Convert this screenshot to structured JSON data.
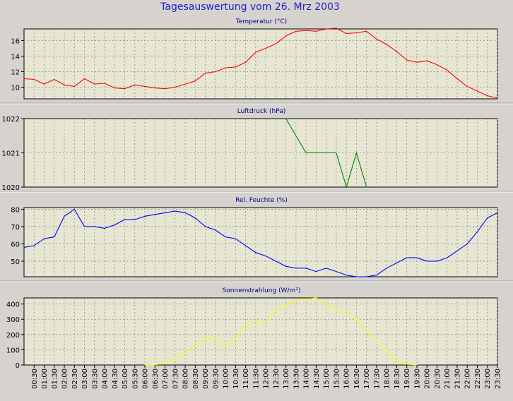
{
  "title": "Tagesauswertung vom 26. Mrz 2003",
  "colors": {
    "background": "#d6d3ce",
    "plot_bg": "#e6e6d2",
    "title": "#2020c8",
    "grid": "#8c8c8c"
  },
  "x_ticks": [
    "00:30",
    "01:00",
    "01:30",
    "02:00",
    "02:30",
    "03:00",
    "03:30",
    "04:00",
    "04:30",
    "05:00",
    "05:30",
    "06:00",
    "06:30",
    "07:00",
    "07:30",
    "08:00",
    "08:30",
    "09:00",
    "09:30",
    "10:00",
    "10:30",
    "11:00",
    "11:30",
    "12:00",
    "12:30",
    "13:00",
    "13:30",
    "14:00",
    "14:30",
    "15:00",
    "15:30",
    "16:00",
    "16:30",
    "17:00",
    "17:30",
    "18:00",
    "18:30",
    "19:00",
    "19:30",
    "20:00",
    "20:30",
    "21:00",
    "21:30",
    "22:00",
    "22:30",
    "23:00",
    "23:30"
  ],
  "chart_data": [
    {
      "type": "line",
      "title": "Temperatur (°C)",
      "ylim": [
        8.5,
        17.5
      ],
      "yticks": [
        10,
        12,
        14,
        16
      ],
      "grid": true,
      "series": [
        {
          "color": "#ff0000",
          "x": [
            "00:00",
            "00:30",
            "01:00",
            "01:30",
            "02:00",
            "02:30",
            "03:00",
            "03:30",
            "04:00",
            "04:30",
            "05:00",
            "05:30",
            "06:00",
            "06:30",
            "07:00",
            "07:30",
            "08:00",
            "08:30",
            "09:00",
            "09:30",
            "10:00",
            "10:30",
            "11:00",
            "11:30",
            "12:00",
            "12:30",
            "13:00",
            "13:30",
            "14:00",
            "14:30",
            "15:00",
            "15:30",
            "16:00",
            "16:30",
            "17:00",
            "17:30",
            "18:00",
            "18:30",
            "19:00",
            "19:30",
            "20:00",
            "20:30",
            "21:00",
            "21:30",
            "22:00",
            "22:30",
            "23:00",
            "23:30"
          ],
          "values": [
            11.1,
            11.0,
            10.4,
            11.0,
            10.3,
            10.1,
            11.1,
            10.4,
            10.5,
            9.9,
            9.8,
            10.3,
            10.1,
            9.9,
            9.8,
            10.0,
            10.4,
            10.8,
            11.8,
            12.0,
            12.5,
            12.6,
            13.2,
            14.5,
            15.0,
            15.6,
            16.6,
            17.2,
            17.3,
            17.2,
            17.5,
            17.6,
            16.9,
            17.0,
            17.2,
            16.2,
            15.5,
            14.6,
            13.5,
            13.2,
            13.4,
            12.9,
            12.2,
            11.1,
            10.1,
            9.5,
            8.9,
            8.6
          ]
        }
      ]
    },
    {
      "type": "line",
      "title": "Luftdruck (hPa)",
      "ylim": [
        1020,
        1022
      ],
      "yticks": [
        1020,
        1021,
        1022
      ],
      "grid": true,
      "series": [
        {
          "color": "#008000",
          "x": [
            "13:00",
            "14:00",
            "14:30",
            "15:00",
            "15:30",
            "16:00",
            "16:30",
            "17:00"
          ],
          "values": [
            1022,
            1021,
            1021,
            1021,
            1021,
            1020,
            1021,
            1020
          ]
        }
      ]
    },
    {
      "type": "line",
      "title": "Rel. Feuchte (%)",
      "ylim": [
        41,
        81
      ],
      "yticks": [
        50,
        60,
        70,
        80
      ],
      "grid": true,
      "series": [
        {
          "color": "#0000ff",
          "x": [
            "00:00",
            "00:30",
            "01:00",
            "01:30",
            "02:00",
            "02:30",
            "03:00",
            "03:30",
            "04:00",
            "04:30",
            "05:00",
            "05:30",
            "06:00",
            "06:30",
            "07:00",
            "07:30",
            "08:00",
            "08:30",
            "09:00",
            "09:30",
            "10:00",
            "10:30",
            "11:00",
            "11:30",
            "12:00",
            "12:30",
            "13:00",
            "13:30",
            "14:00",
            "14:30",
            "15:00",
            "15:30",
            "16:00",
            "16:30",
            "17:00",
            "17:30",
            "18:00",
            "18:30",
            "19:00",
            "19:30",
            "20:00",
            "20:30",
            "21:00",
            "21:30",
            "22:00",
            "22:30",
            "23:00",
            "23:30"
          ],
          "values": [
            58,
            59,
            63,
            64,
            76,
            80,
            70,
            70,
            69,
            71,
            74,
            74,
            76,
            77,
            78,
            79,
            78,
            75,
            70,
            68,
            64,
            63,
            59,
            55,
            53,
            50,
            47,
            46,
            46,
            44,
            46,
            44,
            42,
            41,
            41,
            42,
            46,
            49,
            52,
            52,
            50,
            50,
            52,
            56,
            60,
            67,
            75,
            78
          ]
        }
      ]
    },
    {
      "type": "line",
      "title": "Sonnenstrahlung (W/m²)",
      "ylim": [
        0,
        440
      ],
      "yticks": [
        0,
        100,
        200,
        300,
        400
      ],
      "grid": true,
      "series": [
        {
          "color": "#ffff00",
          "x": [
            "06:00",
            "06:30",
            "07:00",
            "07:30",
            "08:00",
            "08:30",
            "09:00",
            "09:30",
            "10:00",
            "10:30",
            "11:00",
            "11:30",
            "12:00",
            "12:30",
            "13:00",
            "13:30",
            "14:00",
            "14:30",
            "15:00",
            "15:30",
            "16:00",
            "16:30",
            "17:00",
            "17:30",
            "18:00",
            "18:30",
            "19:00",
            "19:30"
          ],
          "values": [
            0,
            0,
            15,
            40,
            80,
            130,
            175,
            170,
            120,
            170,
            260,
            280,
            280,
            360,
            390,
            430,
            430,
            440,
            400,
            360,
            350,
            300,
            220,
            160,
            90,
            30,
            5,
            0
          ]
        }
      ]
    }
  ]
}
